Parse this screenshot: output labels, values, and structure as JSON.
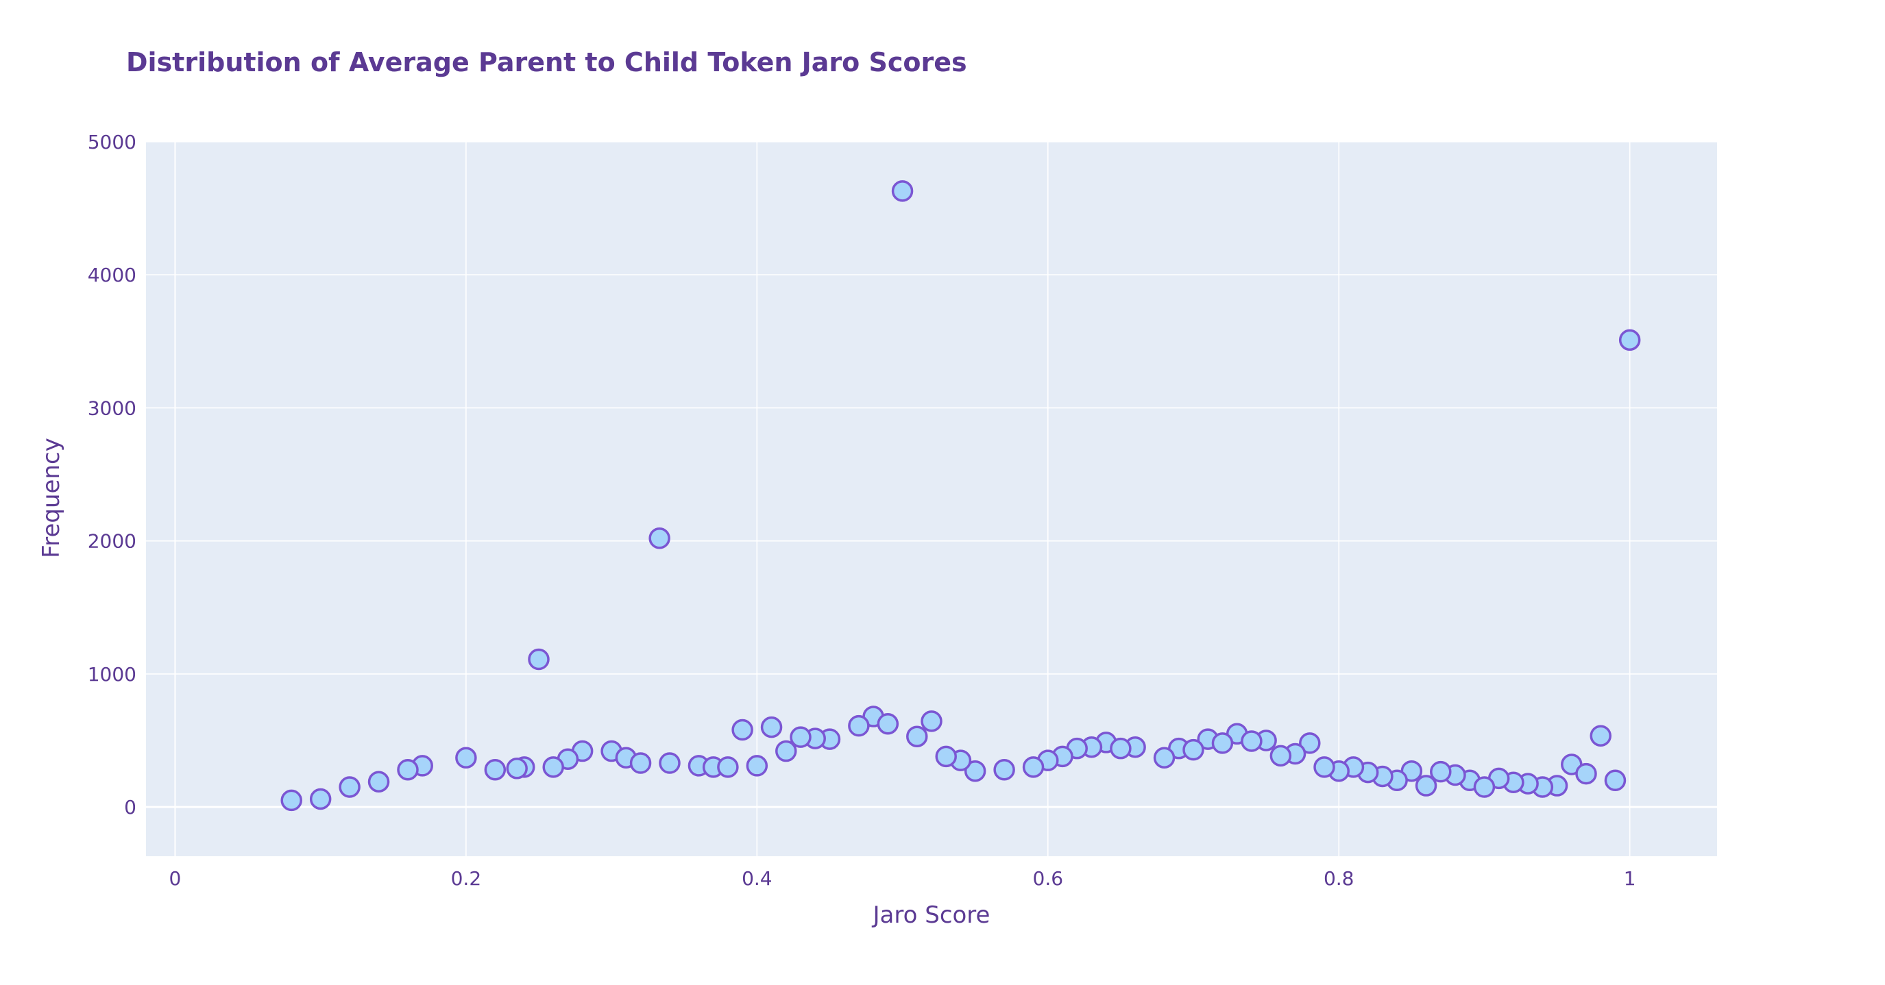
{
  "chart_data": {
    "type": "scatter",
    "title": "Distribution of Average Parent to Child Token Jaro Scores",
    "xlabel": "Jaro Score",
    "ylabel": "Frequency",
    "xlim": [
      -0.02,
      1.06
    ],
    "ylim": [
      -370,
      5000
    ],
    "xticks": [
      0,
      0.2,
      0.4,
      0.6,
      0.8,
      1
    ],
    "xtick_labels": [
      "0",
      "0.2",
      "0.4",
      "0.6",
      "0.8",
      "1"
    ],
    "yticks": [
      0,
      1000,
      2000,
      3000,
      4000,
      5000
    ],
    "ytick_labels": [
      "0",
      "1000",
      "2000",
      "3000",
      "4000",
      "5000"
    ],
    "grid": true,
    "colors": {
      "plot_bg": "#e5ecf6",
      "grid": "#ffffff",
      "marker_fill": "#a6d4fa",
      "marker_line": "#7b56d3",
      "text": "#5b3a93"
    },
    "series": [
      {
        "x": [
          0.5,
          1.0,
          0.333,
          0.25,
          0.98,
          0.48,
          0.52,
          0.49,
          0.47,
          0.41,
          0.39,
          0.45,
          0.44,
          0.43,
          0.51,
          0.73,
          0.75,
          0.74,
          0.64,
          0.66,
          0.63,
          0.62,
          0.71,
          0.72,
          0.69,
          0.7,
          0.78,
          0.77,
          0.76,
          0.65,
          0.68,
          0.61,
          0.6,
          0.59,
          0.57,
          0.55,
          0.54,
          0.53,
          0.42,
          0.3,
          0.28,
          0.27,
          0.31,
          0.32,
          0.34,
          0.36,
          0.37,
          0.38,
          0.4,
          0.26,
          0.24,
          0.2,
          0.17,
          0.16,
          0.14,
          0.96,
          0.97,
          0.99,
          0.95,
          0.94,
          0.93,
          0.92,
          0.91,
          0.89,
          0.88,
          0.87,
          0.85,
          0.84,
          0.83,
          0.82,
          0.81,
          0.8,
          0.79,
          0.86,
          0.9,
          0.22,
          0.235,
          0.12,
          0.1,
          0.08
        ],
        "y": [
          4630,
          3510,
          2020,
          1110,
          535,
          680,
          645,
          625,
          610,
          600,
          580,
          510,
          515,
          525,
          530,
          550,
          500,
          495,
          485,
          450,
          450,
          440,
          510,
          480,
          440,
          430,
          480,
          400,
          385,
          440,
          370,
          380,
          350,
          300,
          280,
          270,
          350,
          380,
          420,
          420,
          420,
          360,
          370,
          330,
          330,
          310,
          300,
          300,
          310,
          300,
          300,
          370,
          310,
          280,
          190,
          320,
          250,
          200,
          160,
          150,
          175,
          185,
          215,
          200,
          240,
          265,
          270,
          200,
          230,
          260,
          300,
          270,
          300,
          160,
          150,
          280,
          290,
          150,
          60,
          50
        ]
      }
    ]
  }
}
